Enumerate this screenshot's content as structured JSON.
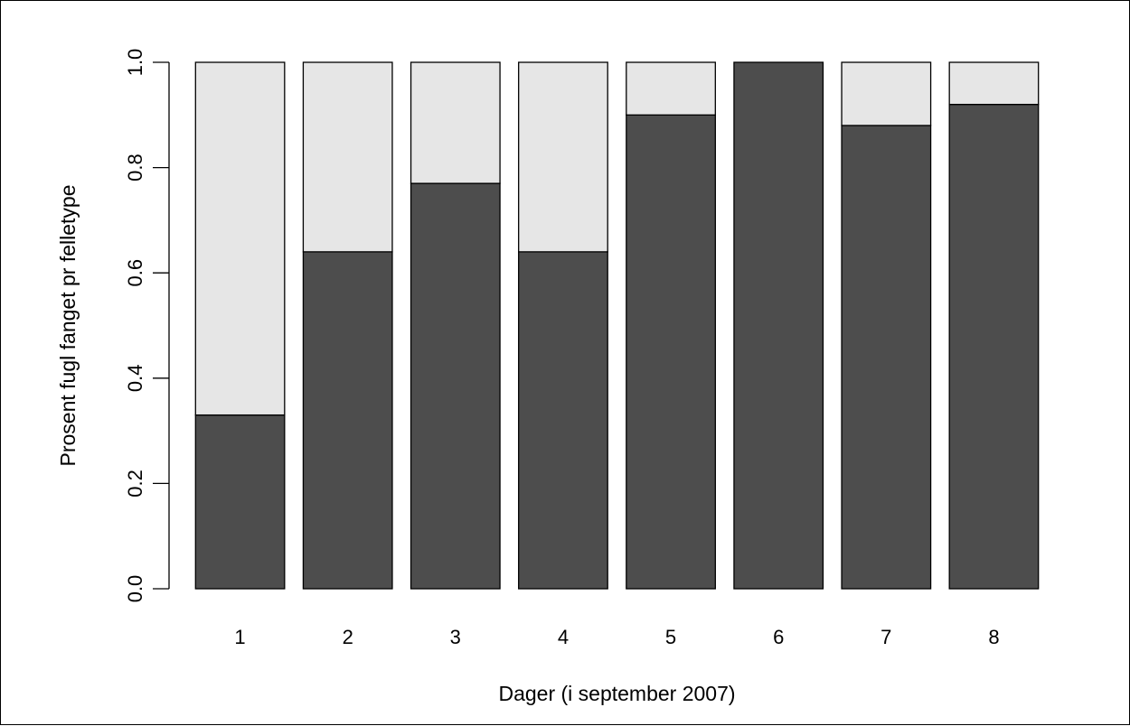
{
  "chart_data": {
    "type": "bar",
    "stacked": true,
    "title": "",
    "xlabel": "Dager (i september 2007)",
    "ylabel": "Prosent fugl fanget pr felletype",
    "categories": [
      "1",
      "2",
      "3",
      "4",
      "5",
      "6",
      "7",
      "8"
    ],
    "series": [
      {
        "values": [
          0.33,
          0.64,
          0.77,
          0.64,
          0.9,
          1.0,
          0.88,
          0.92
        ],
        "color": "#4d4d4d"
      },
      {
        "values": [
          0.67,
          0.36,
          0.23,
          0.36,
          0.1,
          0.0,
          0.12,
          0.08
        ],
        "color": "#e6e6e6"
      }
    ],
    "ylim": [
      0,
      1
    ],
    "yticks": [
      "0.0",
      "0.2",
      "0.4",
      "0.6",
      "0.8",
      "1.0"
    ],
    "grid": false,
    "legend": "none"
  }
}
